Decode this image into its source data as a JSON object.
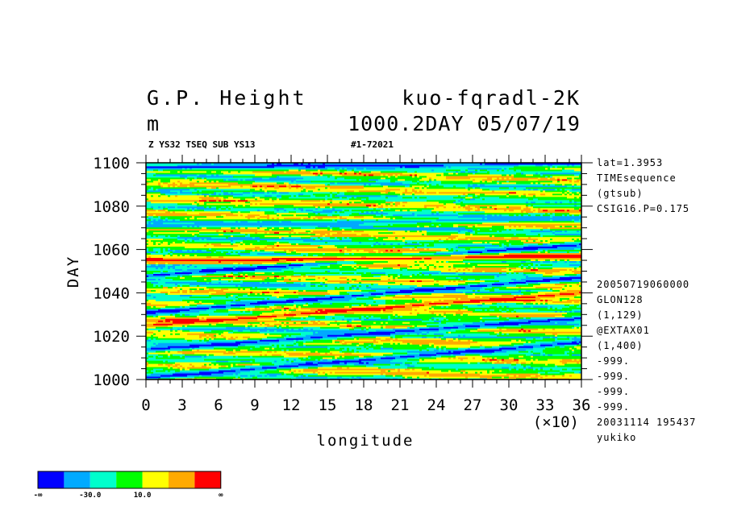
{
  "header": {
    "title_left_1": "G.P. Height",
    "title_right_1": "kuo-fqradl-2K",
    "title_left_2": "m",
    "title_right_2": "1000.2DAY 05/07/19",
    "subtitle_left": "Z YS32 TSEQ SUB YS13",
    "subtitle_right": "#1-72021"
  },
  "side_info": {
    "top": [
      "lat=1.3953",
      "TIMEsequence",
      "(gtsub)",
      "CSIG16.P=0.175"
    ],
    "bottom": [
      "20050719060000",
      "GLON128",
      "(1,129)",
      "@EXTAX01",
      "(1,400)",
      "-999.",
      "-999.",
      "-999.",
      "-999.",
      "20031114 195437",
      "yukiko"
    ]
  },
  "colors": {
    "bins": [
      "#0000ff",
      "#00aaff",
      "#00ffcc",
      "#00ff00",
      "#ffff00",
      "#ffaa00",
      "#ff0000"
    ],
    "axis": "#000000",
    "background": "#ffffff"
  },
  "chart_data": {
    "type": "heatmap",
    "title": "G.P. Height",
    "units": "m",
    "xlabel": "longitude",
    "ylabel": "DAY",
    "x_multiplier_label": "(×10)",
    "xlim": [
      0,
      36
    ],
    "ylim": [
      1000,
      1100
    ],
    "x_ticks": [
      0,
      3,
      6,
      9,
      12,
      15,
      18,
      21,
      24,
      27,
      30,
      33,
      36
    ],
    "y_ticks": [
      1000,
      1020,
      1040,
      1060,
      1080,
      1100
    ],
    "colorbar": {
      "labels": [
        "-∞",
        "-30.0",
        "10.0",
        "∞"
      ],
      "num_bins": 7
    },
    "bands": [
      {
        "day_at_x0": 1001,
        "slope_day_per_x": 0.45,
        "level": 0
      },
      {
        "day_at_x0": 1014,
        "slope_day_per_x": 0.4,
        "level": 0
      },
      {
        "day_at_x0": 1025,
        "slope_day_per_x": 0.42,
        "level": 6
      },
      {
        "day_at_x0": 1031,
        "slope_day_per_x": 0.45,
        "level": 0
      },
      {
        "day_at_x0": 1048,
        "slope_day_per_x": 0.4,
        "level": 0
      },
      {
        "day_at_x0": 1055,
        "slope_day_per_x": 0.05,
        "level": 6
      },
      {
        "day_at_x0": 1071,
        "slope_day_per_x": 0.1,
        "level": 1
      },
      {
        "day_at_x0": 1098,
        "slope_day_per_x": 0.05,
        "level": 0
      }
    ]
  }
}
